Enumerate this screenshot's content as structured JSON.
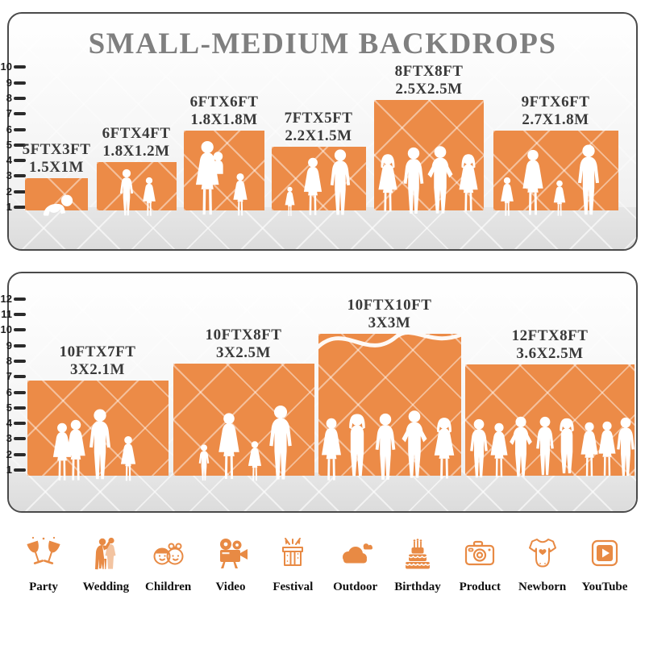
{
  "title": "SMALL-MEDIUM BACKDROPS",
  "colors": {
    "backdrop_orange": "#EC8B47",
    "icon_orange": "#E88A44",
    "title_grey": "#7f7f7f",
    "floor_grey": "#e0e0e0"
  },
  "panels": {
    "top": {
      "ruler_values": [
        1,
        2,
        3,
        4,
        5,
        6,
        7,
        8,
        9,
        10
      ],
      "backdrops": [
        {
          "size_ft": "5FTX3FT",
          "size_m": "1.5X1M",
          "figures": "crawling-baby"
        },
        {
          "size_ft": "6FTX4FT",
          "size_m": "1.8X1.2M",
          "figures": "boy-and-girl"
        },
        {
          "size_ft": "6FTX6FT",
          "size_m": "1.8X1.8M",
          "figures": "mother-holding-baby-and-girl"
        },
        {
          "size_ft": "7FTX5FT",
          "size_m": "2.2X1.5M",
          "figures": "toddler-woman-man"
        },
        {
          "size_ft": "8FTX8FT",
          "size_m": "2.5X2.5M",
          "figures": "four-adults-posing"
        },
        {
          "size_ft": "9FTX6FT",
          "size_m": "2.7X1.8M",
          "figures": "family-of-four"
        }
      ]
    },
    "bottom": {
      "ruler_values": [
        1,
        2,
        3,
        4,
        5,
        6,
        7,
        8,
        9,
        10,
        11,
        12
      ],
      "backdrops": [
        {
          "size_ft": "10FTX7FT",
          "size_m": "3X2.1M",
          "figures": "couple-and-girl"
        },
        {
          "size_ft": "10FTX8FT",
          "size_m": "3X2.5M",
          "figures": "family-walking"
        },
        {
          "size_ft": "10FTX10FT",
          "size_m": "3X3M",
          "figures": "five-adults-posing"
        },
        {
          "size_ft": "12FTX8FT",
          "size_m": "3.6X2.5M",
          "figures": "crowd-of-eight"
        }
      ]
    }
  },
  "categories": [
    {
      "label": "Party",
      "icon": "party-icon"
    },
    {
      "label": "Wedding",
      "icon": "wedding-icon"
    },
    {
      "label": "Children",
      "icon": "children-icon"
    },
    {
      "label": "Video",
      "icon": "video-icon"
    },
    {
      "label": "Festival",
      "icon": "festival-icon"
    },
    {
      "label": "Outdoor",
      "icon": "outdoor-icon"
    },
    {
      "label": "Birthday",
      "icon": "birthday-icon"
    },
    {
      "label": "Product",
      "icon": "product-icon"
    },
    {
      "label": "Newborn",
      "icon": "newborn-icon"
    },
    {
      "label": "YouTube",
      "icon": "youtube-icon"
    }
  ]
}
